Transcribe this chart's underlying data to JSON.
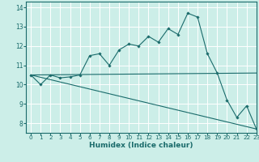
{
  "xlabel": "Humidex (Indice chaleur)",
  "xlim": [
    -0.5,
    23
  ],
  "ylim": [
    7.5,
    14.3
  ],
  "yticks": [
    8,
    9,
    10,
    11,
    12,
    13,
    14
  ],
  "xticks": [
    0,
    1,
    2,
    3,
    4,
    5,
    6,
    7,
    8,
    9,
    10,
    11,
    12,
    13,
    14,
    15,
    16,
    17,
    18,
    19,
    20,
    21,
    22,
    23
  ],
  "bg_color": "#cceee8",
  "line_color": "#1a6b6b",
  "grid_color": "#ffffff",
  "series1_x": [
    0,
    1,
    2,
    3,
    4,
    5,
    6,
    7,
    8,
    9,
    10,
    11,
    12,
    13,
    14,
    15,
    16,
    17,
    18,
    19,
    20,
    21,
    22,
    23
  ],
  "series1_y": [
    10.5,
    10.0,
    10.5,
    10.35,
    10.4,
    10.5,
    11.5,
    11.6,
    11.0,
    11.8,
    12.1,
    12.0,
    12.5,
    12.2,
    12.9,
    12.6,
    13.7,
    13.5,
    11.6,
    10.6,
    9.2,
    8.3,
    8.9,
    7.7
  ],
  "series2_x": [
    0,
    23
  ],
  "series2_y": [
    10.5,
    10.6
  ],
  "series3_x": [
    0,
    23
  ],
  "series3_y": [
    10.5,
    7.7
  ]
}
